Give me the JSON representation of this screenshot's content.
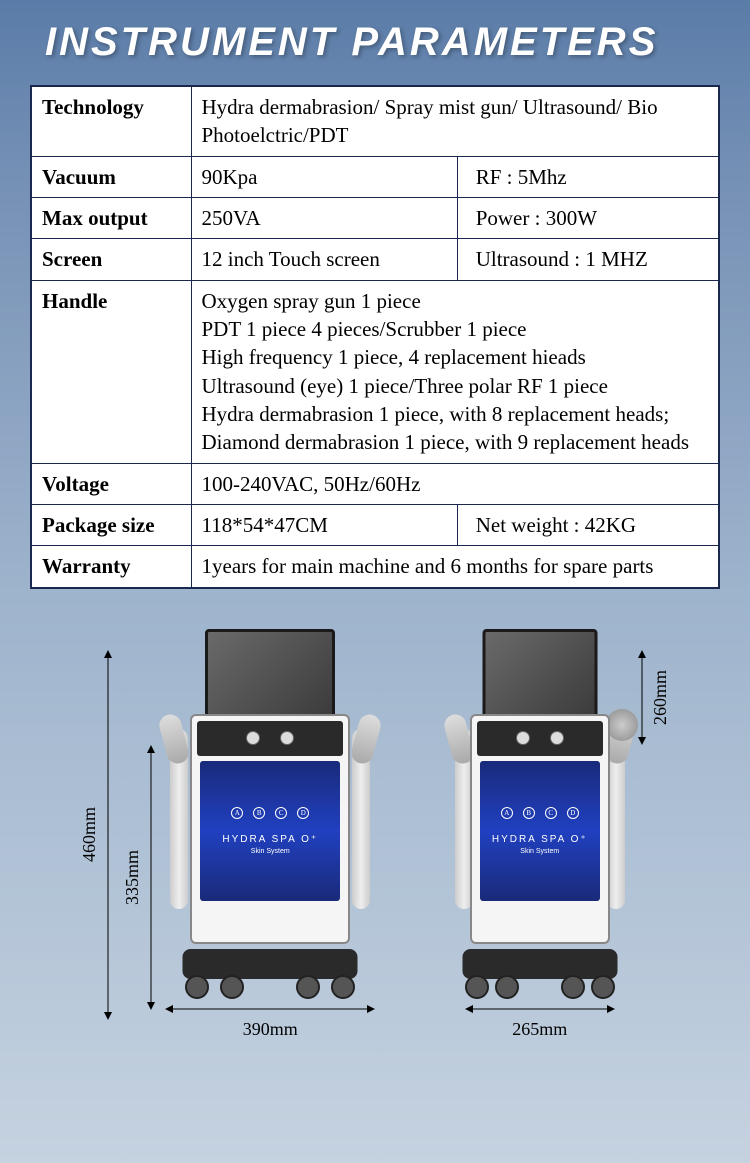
{
  "title": "INSTRUMENT PARAMETERS",
  "table": {
    "rows": [
      {
        "label": "Technology",
        "val": "Hydra dermabrasion/ Spray mist gun/ Ultrasound/ Bio Photoelctric/PDT",
        "span": 2
      },
      {
        "label": "Vacuum",
        "val": "90Kpa",
        "val2": "RF : 5Mhz"
      },
      {
        "label": "Max output",
        "val": "250VA",
        "val2": "Power : 300W"
      },
      {
        "label": "Screen",
        "val": "12 inch Touch screen",
        "val2": "Ultrasound : 1 MHZ"
      },
      {
        "label": "Handle",
        "val": "Oxygen spray gun 1 piece\nPDT 1 piece 4 pieces/Scrubber 1 piece\nHigh frequency 1 piece, 4 replacement hieads\nUltrasound (eye) 1 piece/Three polar RF 1 piece\nHydra dermabrasion 1 piece, with 8 replacement heads;\nDiamond dermabrasion 1 piece, with 9 replacement heads",
        "span": 2
      },
      {
        "label": "Voltage",
        "val": "100-240VAC, 50Hz/60Hz",
        "span": 2
      },
      {
        "label": "Package size",
        "val": "118*54*47CM",
        "val2": "Net weight : 42KG"
      },
      {
        "label": "Warranty",
        "val": "1years for main machine and 6 months for spare parts",
        "span": 2
      }
    ]
  },
  "machine": {
    "label": "HYDRA SPA O⁺",
    "sublabel": "Skin System",
    "dots": [
      "A",
      "B",
      "C",
      "D"
    ],
    "dims": {
      "height_full": "460mm",
      "height_body": "335mm",
      "width_front": "390mm",
      "height_screen": "260mm",
      "width_side": "265mm"
    }
  }
}
